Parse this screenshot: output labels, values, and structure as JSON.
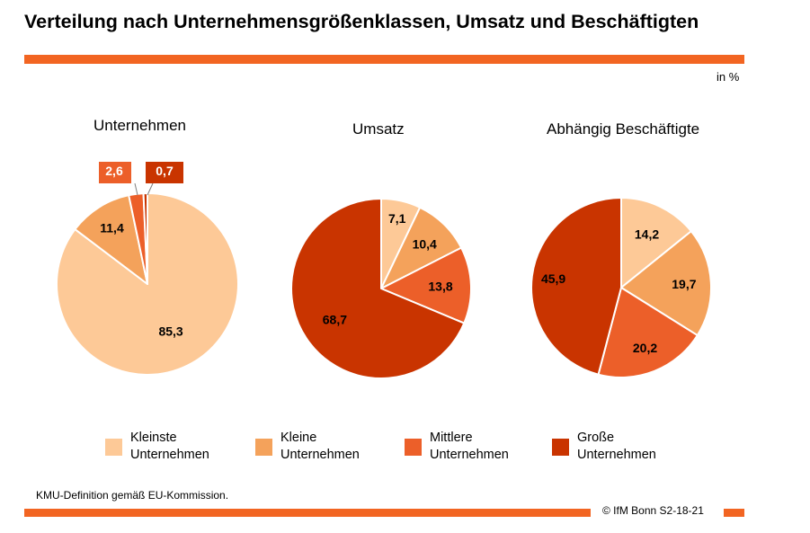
{
  "header": {
    "title": "Verteilung nach Unternehmensgrößenklassen, Umsatz und Beschäftigten",
    "unit": "in %"
  },
  "colors": {
    "accent": "#f26522",
    "kleinste": "#fdc997",
    "kleine": "#f4a25b",
    "mittlere": "#ec5f29",
    "grosse": "#c93400"
  },
  "legend": [
    {
      "line1": "Kleinste",
      "line2": "Unternehmen",
      "color": "#fdc997"
    },
    {
      "line1": "Kleine",
      "line2": "Unternehmen",
      "color": "#f4a25b"
    },
    {
      "line1": "Mittlere",
      "line2": "Unternehmen",
      "color": "#ec5f29"
    },
    {
      "line1": "Große",
      "line2": "Unternehmen",
      "color": "#c93400"
    }
  ],
  "footer": {
    "note": "KMU-Definition gemäß EU-Kommission.",
    "credit": "© IfM  Bonn S2-18-21"
  },
  "chart_data": [
    {
      "type": "pie",
      "title": "Unternehmen",
      "categories": [
        "Kleinste Unternehmen",
        "Kleine Unternehmen",
        "Mittlere Unternehmen",
        "Große Unternehmen"
      ],
      "values": [
        85.3,
        11.4,
        2.6,
        0.7
      ],
      "labels": [
        "85,3",
        "11,4",
        "2,6",
        "0,7"
      ],
      "colors": [
        "#fdc997",
        "#f4a25b",
        "#ec5f29",
        "#c93400"
      ]
    },
    {
      "type": "pie",
      "title": "Umsatz",
      "categories": [
        "Kleinste Unternehmen",
        "Kleine Unternehmen",
        "Mittlere Unternehmen",
        "Große Unternehmen"
      ],
      "values": [
        7.1,
        10.4,
        13.8,
        68.7
      ],
      "labels": [
        "7,1",
        "10,4",
        "13,8",
        "68,7"
      ],
      "colors": [
        "#fdc997",
        "#f4a25b",
        "#ec5f29",
        "#c93400"
      ]
    },
    {
      "type": "pie",
      "title": "Abhängig Beschäftigte",
      "categories": [
        "Kleinste Unternehmen",
        "Kleine Unternehmen",
        "Mittlere Unternehmen",
        "Große Unternehmen"
      ],
      "values": [
        14.2,
        19.7,
        20.2,
        45.9
      ],
      "labels": [
        "14,2",
        "19,7",
        "20,2",
        "45,9"
      ],
      "colors": [
        "#fdc997",
        "#f4a25b",
        "#ec5f29",
        "#c93400"
      ]
    }
  ]
}
